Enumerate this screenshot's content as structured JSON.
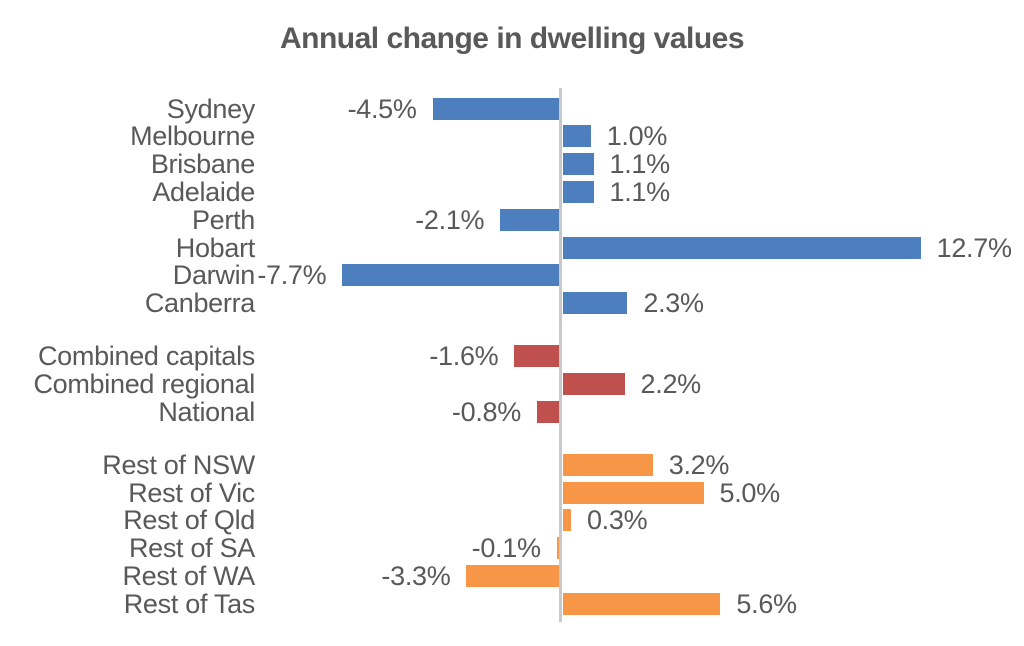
{
  "chart_data": {
    "type": "bar",
    "orientation": "horizontal",
    "title": "Annual change in dwelling values",
    "value_unit": "%",
    "xlim": [
      -8,
      13
    ],
    "grid": false,
    "legend": "none",
    "zero_axis_line": true,
    "value_label_position": "outside-end",
    "groups": [
      {
        "name": "capital-cities",
        "color": "#4d7ebe",
        "items": [
          {
            "label": "Sydney",
            "value": -4.5,
            "display": "-4.5%"
          },
          {
            "label": "Melbourne",
            "value": 1.0,
            "display": "1.0%"
          },
          {
            "label": "Brisbane",
            "value": 1.1,
            "display": "1.1%"
          },
          {
            "label": "Adelaide",
            "value": 1.1,
            "display": "1.1%"
          },
          {
            "label": "Perth",
            "value": -2.1,
            "display": "-2.1%"
          },
          {
            "label": "Hobart",
            "value": 12.7,
            "display": "12.7%"
          },
          {
            "label": "Darwin",
            "value": -7.7,
            "display": "-7.7%"
          },
          {
            "label": "Canberra",
            "value": 2.3,
            "display": "2.3%"
          }
        ]
      },
      {
        "name": "aggregates",
        "color": "#c0504d",
        "items": [
          {
            "label": "Combined capitals",
            "value": -1.6,
            "display": "-1.6%"
          },
          {
            "label": "Combined regional",
            "value": 2.2,
            "display": "2.2%"
          },
          {
            "label": "National",
            "value": -0.8,
            "display": "-0.8%"
          }
        ]
      },
      {
        "name": "rest-of-state",
        "color": "#f79646",
        "items": [
          {
            "label": "Rest of NSW",
            "value": 3.2,
            "display": "3.2%"
          },
          {
            "label": "Rest of Vic",
            "value": 5.0,
            "display": "5.0%"
          },
          {
            "label": "Rest of Qld",
            "value": 0.3,
            "display": "0.3%"
          },
          {
            "label": "Rest of SA",
            "value": -0.1,
            "display": "-0.1%"
          },
          {
            "label": "Rest of WA",
            "value": -3.3,
            "display": "-3.3%"
          },
          {
            "label": "Rest of Tas",
            "value": 5.6,
            "display": "5.6%"
          }
        ]
      }
    ]
  },
  "colors": {
    "capitals_blue": "#4d7ebe",
    "aggregate_red": "#c0504d",
    "regional_orange": "#f79646",
    "axis_line": "#c9c9c9",
    "text": "#595959",
    "background": "#ffffff"
  }
}
